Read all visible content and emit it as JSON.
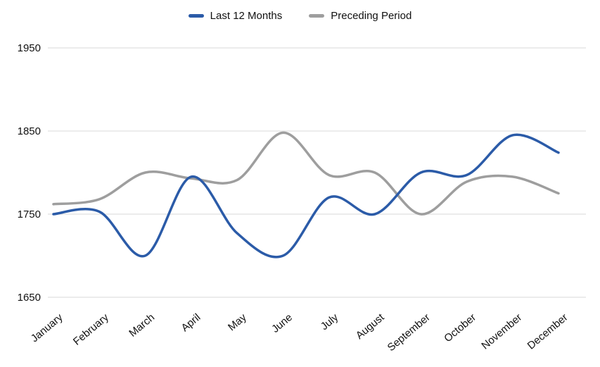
{
  "colors": {
    "series_blue": "#2b5ba8",
    "series_gray": "#9e9e9e",
    "grid": "#d9d9d9",
    "axis_text": "#111111",
    "background": "#ffffff"
  },
  "chart_data": {
    "type": "line",
    "title": "",
    "xlabel": "",
    "ylabel": "",
    "curve": "smooth",
    "grid": "horizontal",
    "legend_position": "top",
    "ylim": [
      1650,
      1950
    ],
    "yticks": [
      1650,
      1750,
      1850,
      1950
    ],
    "categories": [
      "January",
      "February",
      "March",
      "April",
      "May",
      "June",
      "July",
      "August",
      "September",
      "October",
      "November",
      "December"
    ],
    "series": [
      {
        "name": "Last 12 Months",
        "color": "#2b5ba8",
        "values": [
          1750,
          1753,
          1700,
          1795,
          1727,
          1700,
          1770,
          1750,
          1800,
          1797,
          1845,
          1824
        ]
      },
      {
        "name": "Preceding Period",
        "color": "#9e9e9e",
        "values": [
          1762,
          1768,
          1800,
          1793,
          1791,
          1848,
          1797,
          1800,
          1750,
          1789,
          1795,
          1775
        ]
      }
    ]
  }
}
